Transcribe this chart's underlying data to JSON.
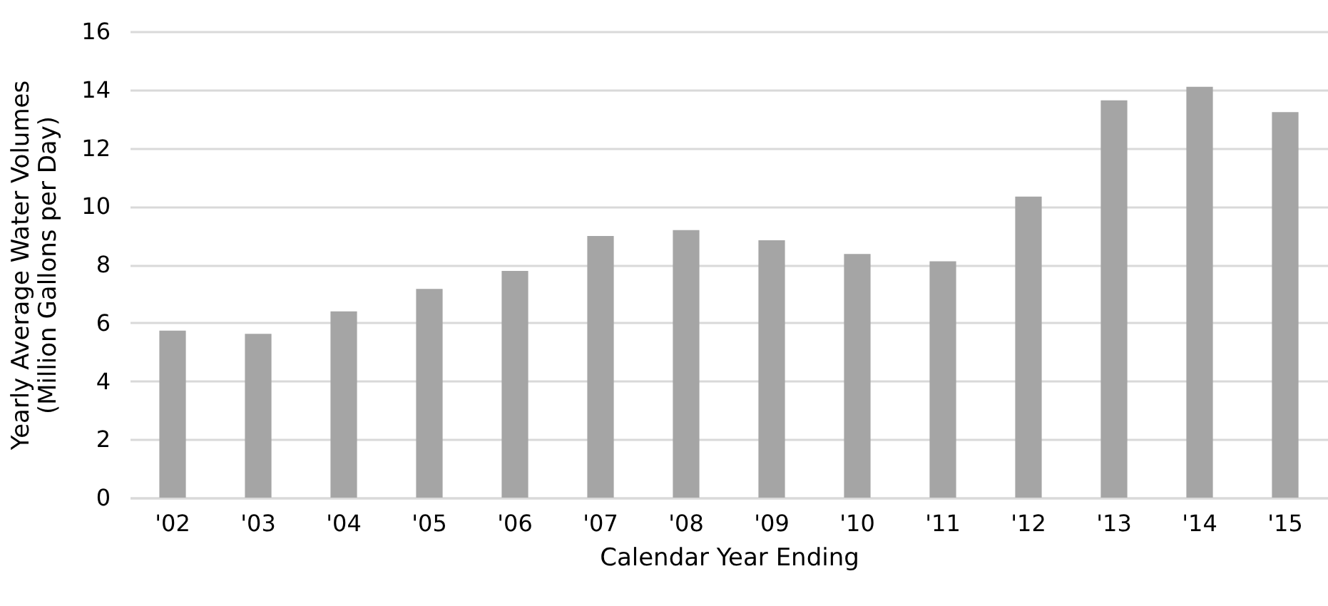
{
  "chart_data": {
    "type": "bar",
    "xlabel": "Calendar Year Ending",
    "ylabel": "Yearly Average Water Volumes\n(Million Gallons per Day)",
    "categories": [
      "'02",
      "'03",
      "'04",
      "'05",
      "'06",
      "'07",
      "'08",
      "'09",
      "'10",
      "'11",
      "'12",
      "'13",
      "'14",
      "'15"
    ],
    "values": [
      5.73,
      5.62,
      6.39,
      7.16,
      7.78,
      8.98,
      9.18,
      8.83,
      8.36,
      8.11,
      10.33,
      13.63,
      14.1,
      13.23
    ],
    "color": "#a5a5a5",
    "ylim": [
      0,
      16
    ],
    "yticks": [
      0,
      2,
      4,
      6,
      8,
      10,
      12,
      14,
      16
    ],
    "grid": "y"
  }
}
